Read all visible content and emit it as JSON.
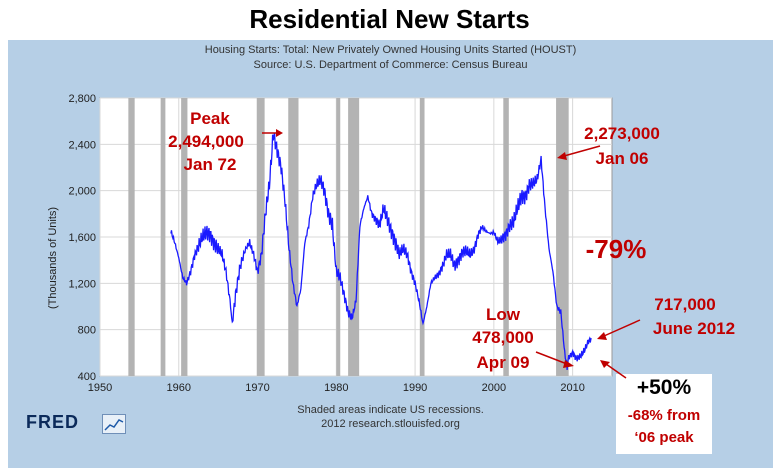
{
  "title": "Residential New Starts",
  "fred_logo": "FRED",
  "colors": {
    "line": "#1a1aff",
    "recession": "#b3b3b3",
    "annotation": "#c00000",
    "frame": "#b6cfe6"
  },
  "chart_data": {
    "type": "line",
    "title": "Housing Starts: Total: New Privately Owned Housing Units Started (HOUST)",
    "subtitle": "Source: U.S. Department of Commerce: Census Bureau",
    "xlabel": "",
    "ylabel": "(Thousands of Units)",
    "xlim": [
      1950,
      2015
    ],
    "ylim": [
      400,
      2800
    ],
    "x_ticks": [
      "1950",
      "1960",
      "1970",
      "1980",
      "1990",
      "2000",
      "2010"
    ],
    "y_ticks": [
      "400",
      "800",
      "1,200",
      "1,600",
      "2,000",
      "2,400",
      "2,800"
    ],
    "grid": true,
    "recessions": [
      [
        1953.6,
        1954.4
      ],
      [
        1957.7,
        1958.3
      ],
      [
        1960.3,
        1961.1
      ],
      [
        1969.9,
        1970.9
      ],
      [
        1973.9,
        1975.2
      ],
      [
        1980.0,
        1980.5
      ],
      [
        1981.5,
        1982.9
      ],
      [
        1990.6,
        1991.2
      ],
      [
        2001.2,
        2001.9
      ],
      [
        2007.9,
        2009.5
      ]
    ],
    "recession_note": "Shaded areas indicate US recessions.",
    "credit": "2012 research.stlouisfed.org",
    "series": [
      {
        "x": [
          1959.0,
          1959.5,
          1960.0,
          1960.5,
          1961.0,
          1961.5,
          1962.0,
          1962.5,
          1963.0,
          1963.5,
          1964.0,
          1964.5,
          1965.0,
          1965.5,
          1966.0,
          1966.5,
          1966.8,
          1967.2,
          1967.8,
          1968.5,
          1969.0,
          1969.5,
          1970.0,
          1970.5,
          1971.0,
          1971.5,
          1972.0,
          1972.5,
          1973.0,
          1973.5,
          1974.0,
          1974.5,
          1975.0,
          1975.5,
          1976.0,
          1976.5,
          1977.0,
          1977.5,
          1978.0,
          1978.5,
          1979.0,
          1979.5,
          1980.0,
          1980.5,
          1981.0,
          1981.5,
          1982.0,
          1982.5,
          1983.0,
          1983.5,
          1984.0,
          1984.5,
          1985.0,
          1985.5,
          1986.0,
          1986.5,
          1987.0,
          1987.5,
          1988.0,
          1988.5,
          1989.0,
          1989.5,
          1990.0,
          1990.5,
          1991.0,
          1991.5,
          1992.0,
          1992.5,
          1993.0,
          1993.5,
          1994.0,
          1994.5,
          1995.0,
          1995.5,
          1996.0,
          1996.5,
          1997.0,
          1997.5,
          1998.0,
          1998.5,
          1999.0,
          1999.5,
          2000.0,
          2000.5,
          2001.0,
          2001.5,
          2002.0,
          2002.5,
          2003.0,
          2003.5,
          2004.0,
          2004.5,
          2005.0,
          2005.5,
          2006.0,
          2006.5,
          2007.0,
          2007.5,
          2008.0,
          2008.5,
          2009.0,
          2009.3,
          2009.5,
          2010.0,
          2010.5,
          2011.0,
          2011.5,
          2012.0,
          2012.4
        ],
        "y": [
          1650,
          1550,
          1420,
          1250,
          1200,
          1300,
          1440,
          1520,
          1600,
          1640,
          1620,
          1540,
          1500,
          1450,
          1300,
          1050,
          850,
          1100,
          1350,
          1500,
          1550,
          1450,
          1300,
          1450,
          1800,
          2050,
          2494,
          2350,
          2200,
          1900,
          1500,
          1200,
          1000,
          1150,
          1550,
          1700,
          1950,
          2050,
          2100,
          2000,
          1800,
          1700,
          1300,
          1250,
          1100,
          950,
          900,
          1050,
          1700,
          1850,
          1950,
          1800,
          1750,
          1700,
          1850,
          1750,
          1650,
          1550,
          1450,
          1500,
          1450,
          1300,
          1200,
          1050,
          850,
          1000,
          1200,
          1250,
          1280,
          1350,
          1450,
          1450,
          1350,
          1400,
          1470,
          1480,
          1450,
          1490,
          1620,
          1690,
          1650,
          1630,
          1640,
          1560,
          1580,
          1620,
          1700,
          1730,
          1850,
          1950,
          1950,
          2050,
          2060,
          2100,
          2273,
          1850,
          1500,
          1300,
          1000,
          950,
          600,
          478,
          560,
          600,
          550,
          570,
          620,
          700,
          717
        ]
      }
    ]
  },
  "annotations": {
    "peak_word": "Peak",
    "peak_value": "2,494,000",
    "peak_date": "Jan 72",
    "top06_value": "2,273,000",
    "top06_date": "Jan 06",
    "drop_pct": "-79%",
    "low_word": "Low",
    "low_value": "478,000",
    "low_date": "Apr 09",
    "recent_value": "717,000",
    "recent_date": "June 2012",
    "gain_pct": "+50%",
    "from_peak_1": "-68% from",
    "from_peak_2": "‘06 peak"
  }
}
